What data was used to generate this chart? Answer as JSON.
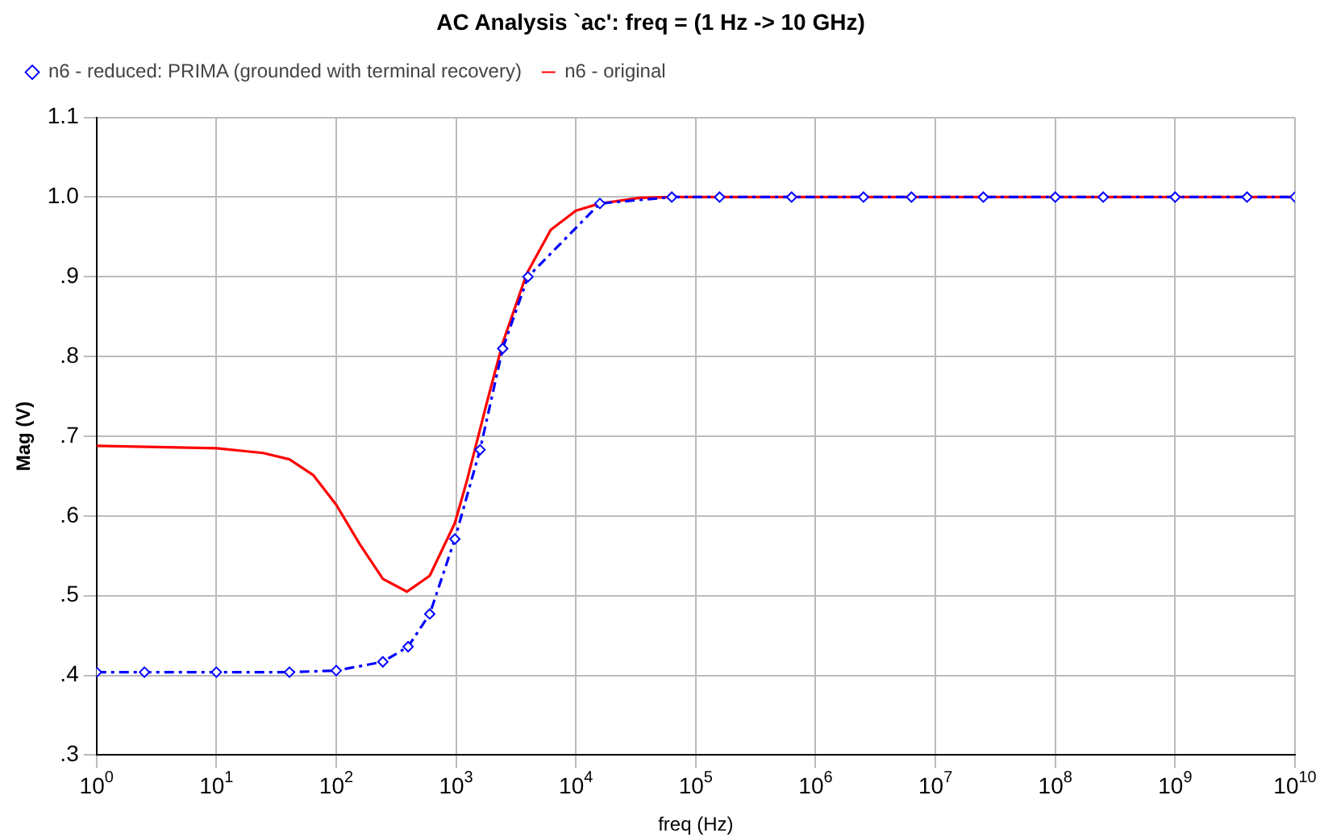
{
  "chart_data": {
    "type": "line",
    "title": "AC Analysis `ac': freq = (1 Hz -> 10 GHz)",
    "xlabel": "freq (Hz)",
    "ylabel": "Mag (V)",
    "log": "x",
    "grid": true,
    "legend": "top",
    "xlim": [
      1,
      10000000000
    ],
    "ylim": [
      0.3,
      1.1
    ],
    "xticks": [
      {
        "value": 1,
        "label": "10$^{0}$"
      },
      {
        "value": 10,
        "label": "10$^{1}$"
      },
      {
        "value": 100,
        "label": "10$^{2}$"
      },
      {
        "value": 1000,
        "label": "10$^{3}$"
      },
      {
        "value": 10000,
        "label": "10$^{4}$"
      },
      {
        "value": 100000,
        "label": "10$^{5}$"
      },
      {
        "value": 1000000,
        "label": "10$^{6}$"
      },
      {
        "value": 10000000,
        "label": "10$^{7}$"
      },
      {
        "value": 100000000,
        "label": "10$^{8}$"
      },
      {
        "value": 1000000000,
        "label": "10$^{9}$"
      },
      {
        "value": 10000000000,
        "label": "10$^{10}$"
      }
    ],
    "yticks": [
      {
        "value": 0.3,
        "label": ".3"
      },
      {
        "value": 0.4,
        "label": ".4"
      },
      {
        "value": 0.5,
        "label": ".5"
      },
      {
        "value": 0.6,
        "label": ".6"
      },
      {
        "value": 0.7,
        "label": ".7"
      },
      {
        "value": 0.8,
        "label": ".8"
      },
      {
        "value": 0.9,
        "label": ".9"
      },
      {
        "value": 1.0,
        "label": "1.0"
      },
      1.1
    ],
    "series": [
      {
        "name": "n6 - original",
        "color": "#ff0000",
        "line_style": "solid",
        "marker": "none",
        "x": [
          1,
          10,
          24.5,
          40.7,
          64.6,
          100,
          158,
          245,
          389,
          603,
          977,
          1230,
          1820,
          2450,
          3890,
          6170,
          10000,
          15850,
          33900,
          63100,
          158000,
          631000,
          2510000,
          6310000,
          25100000,
          100000000,
          251000000,
          1000000000,
          3980000000,
          10000000000
        ],
        "values": [
          0.688,
          0.685,
          0.679,
          0.671,
          0.651,
          0.614,
          0.564,
          0.521,
          0.505,
          0.525,
          0.591,
          0.644,
          0.744,
          0.817,
          0.904,
          0.959,
          0.983,
          0.992,
          0.999,
          1.0,
          1.0,
          1.0,
          1.0,
          1.0,
          1.0,
          1.0,
          1.0,
          1.0,
          1.0,
          1.0
        ]
      },
      {
        "name": "n6 - reduced: PRIMA (grounded with terminal recovery)",
        "color": "#0000ff",
        "line_style": "dashed",
        "marker": "diamond",
        "x": [
          1,
          2.51,
          10,
          40.7,
          100,
          245,
          398,
          603,
          977,
          1585,
          2450,
          3980,
          15850,
          63100,
          158000,
          631000,
          2510000,
          6310000,
          25100000,
          100000000,
          251000000,
          1000000000,
          3980000000,
          10000000000
        ],
        "values": [
          0.404,
          0.404,
          0.404,
          0.404,
          0.406,
          0.417,
          0.436,
          0.477,
          0.571,
          0.683,
          0.81,
          0.9,
          0.992,
          1.0,
          1.0,
          1.0,
          1.0,
          1.0,
          1.0,
          1.0,
          1.0,
          1.0,
          1.0,
          1.0
        ]
      }
    ]
  }
}
